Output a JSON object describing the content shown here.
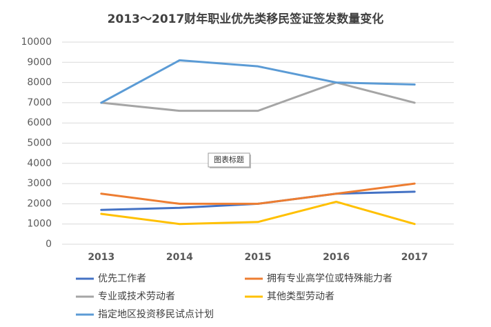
{
  "chart_data": {
    "type": "line",
    "title": "2013～2017财年职业优先类移民签证签发数量变化",
    "annotation": "图表标题",
    "categories": [
      "2013",
      "2014",
      "2015",
      "2016",
      "2017"
    ],
    "series": [
      {
        "name": "优先工作者",
        "color": "#4472c4",
        "values": [
          1700,
          1800,
          2000,
          2500,
          2600
        ]
      },
      {
        "name": "拥有专业高学位或特殊能力者",
        "color": "#ed7d31",
        "values": [
          2500,
          2000,
          2000,
          2500,
          3000
        ]
      },
      {
        "name": "专业或技术劳动者",
        "color": "#a5a5a5",
        "values": [
          7000,
          6600,
          6600,
          8000,
          7000
        ]
      },
      {
        "name": "其他类型劳动者",
        "color": "#ffc000",
        "values": [
          1500,
          1000,
          1100,
          2100,
          1000
        ]
      },
      {
        "name": "指定地区投资移民试点计划",
        "color": "#5b9bd5",
        "values": [
          7000,
          9100,
          8800,
          8000,
          7900
        ]
      }
    ],
    "ylim": [
      0,
      10000
    ],
    "yticks": [
      0,
      1000,
      2000,
      3000,
      4000,
      5000,
      6000,
      7000,
      8000,
      9000,
      10000
    ],
    "grid": true
  }
}
